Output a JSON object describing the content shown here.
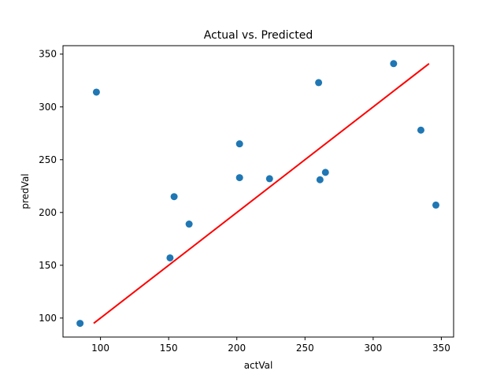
{
  "chart_data": {
    "type": "scatter",
    "title": "Actual vs. Predicted",
    "xlabel": "actVal",
    "ylabel": "predVal",
    "xlim": [
      72.5,
      359
    ],
    "ylim": [
      82,
      358
    ],
    "xticks": [
      100,
      150,
      200,
      250,
      300,
      350
    ],
    "yticks": [
      100,
      150,
      200,
      250,
      300,
      350
    ],
    "grid": false,
    "points": {
      "x": [
        85,
        97,
        151,
        154,
        165,
        202,
        202,
        224,
        260,
        261,
        265,
        315,
        335,
        346
      ],
      "y": [
        95,
        314,
        157,
        215,
        189,
        265,
        233,
        232,
        323,
        231,
        238,
        341,
        278,
        207
      ]
    },
    "fit_line": {
      "x": [
        95,
        341
      ],
      "y": [
        95,
        341
      ]
    },
    "colors": {
      "points": "#1f77b4",
      "fit_line": "#ff0000",
      "axes": "#000000"
    }
  }
}
